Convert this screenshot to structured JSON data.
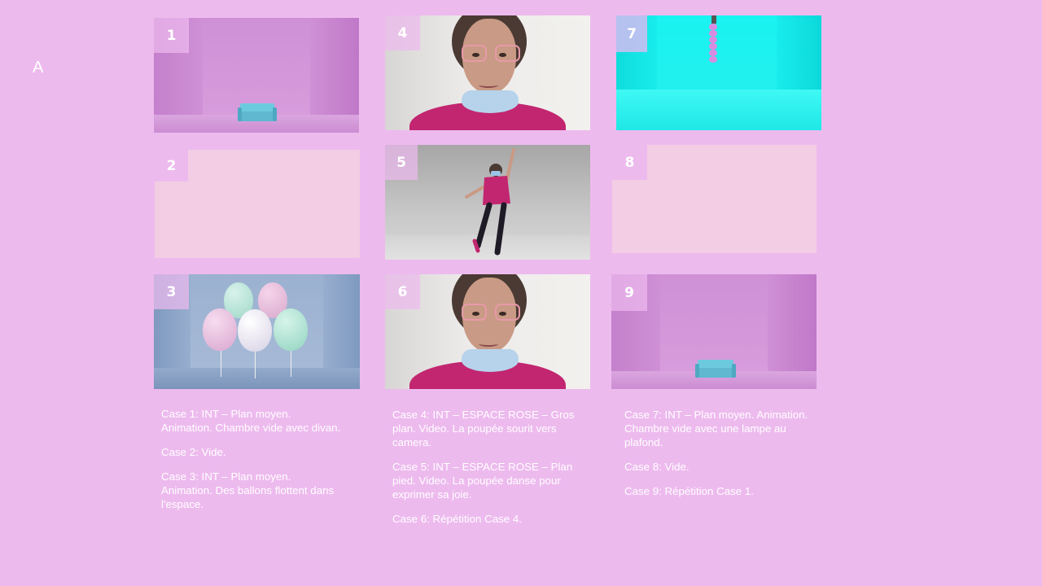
{
  "slide_label": "A",
  "panels": [
    {
      "number": "1",
      "scene": "room with sofa"
    },
    {
      "number": "2",
      "scene": "blank"
    },
    {
      "number": "3",
      "scene": "balloons"
    },
    {
      "number": "4",
      "scene": "close-up face"
    },
    {
      "number": "5",
      "scene": "dancing"
    },
    {
      "number": "6",
      "scene": "close-up face"
    },
    {
      "number": "7",
      "scene": "cyan room with lamp"
    },
    {
      "number": "8",
      "scene": "blank"
    },
    {
      "number": "9",
      "scene": "room with sofa"
    }
  ],
  "descriptions": {
    "column1": [
      "Case 1: INT – Plan moyen. Animation.  Chambre vide avec divan.",
      "Case 2: Vide.",
      "Case 3: INT – Plan moyen. Animation.  Des ballons flottent dans l'espace."
    ],
    "column2": [
      "Case 4: INT – ESPACE ROSE – Gros plan. Video. La poupée sourit vers camera.",
      "Case 5: INT – ESPACE ROSE – Plan pied. Video. La poupée danse pour exprimer sa joie.",
      "Case 6: Répétition Case 4."
    ],
    "column3": [
      "Case 7: INT – Plan moyen. Animation.  Chambre vide avec une lampe au plafond.",
      "Case 8: Vide.",
      "Case 9: Répétition Case 1."
    ]
  },
  "colors": {
    "background": "#edbaee",
    "room_pink": "#cf90d5",
    "room_cyan": "#19f3f1",
    "room_blue": "#9bb1d0",
    "blank_panel": "#f2cde4",
    "shirt": "#c22670"
  }
}
